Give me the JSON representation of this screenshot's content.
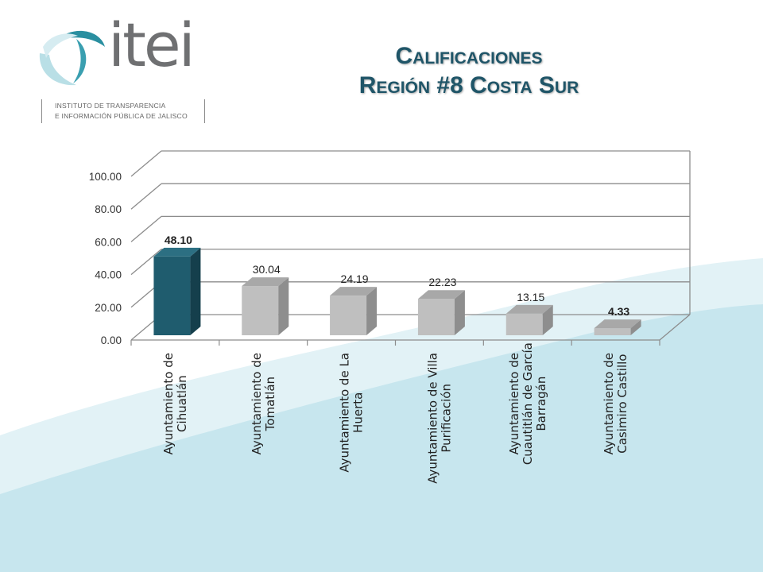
{
  "logo": {
    "wordmark": "itei",
    "line1": "INSTITUTO DE TRANSPARENCIA",
    "line2": "E INFORMACIÓN PÚBLICA DE JALISCO"
  },
  "header": {
    "title_line1": "Calificaciones",
    "title_line2": "Región #8 Costa Sur"
  },
  "colors": {
    "highlight_bar": "#1f5c6e",
    "other_bar": "#bfbfbf",
    "title": "#1f5568",
    "bg_wave": "#c7e6ee"
  },
  "chart_data": {
    "type": "bar",
    "categories": [
      [
        "Ayuntamiento de",
        "Cihuatlán"
      ],
      [
        "Ayuntamiento de",
        "Tomatlán"
      ],
      [
        "Ayuntamiento de La",
        "Huerta"
      ],
      [
        "Ayuntamiento de Villa",
        "Purificación"
      ],
      [
        "Ayuntamiento de",
        "Cuautitlán de García",
        "Barragán"
      ],
      [
        "Ayuntamiento de",
        "Casimiro Castillo"
      ]
    ],
    "values": [
      48.1,
      30.04,
      24.19,
      22.23,
      13.15,
      4.33
    ],
    "value_labels": [
      "48.10",
      "30.04",
      "24.19",
      "22.23",
      "13.15",
      "4.33"
    ],
    "bold_labels": [
      true,
      false,
      false,
      false,
      false,
      true
    ],
    "ylim": [
      0,
      100
    ],
    "yticks": [
      "0.00",
      "20.00",
      "40.00",
      "60.00",
      "80.00",
      "100.00"
    ],
    "grid": true,
    "three_d": true
  }
}
